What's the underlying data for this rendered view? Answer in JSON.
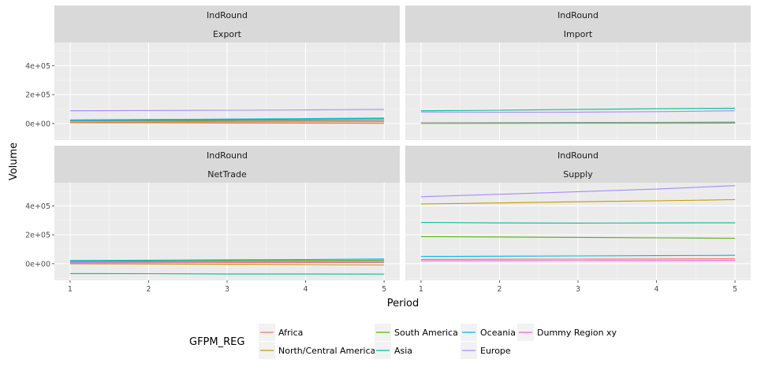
{
  "chart_data": {
    "type": "line",
    "xlabel": "Period",
    "ylabel": "Volume",
    "x": [
      1,
      2,
      3,
      4,
      5
    ],
    "xlim": [
      0.8,
      5.2
    ],
    "ylim": [
      -115000,
      560000
    ],
    "y_ticks": [
      0,
      200000,
      400000
    ],
    "y_tick_labels": [
      "0e+00",
      "2e+05",
      "4e+05"
    ],
    "grid": true,
    "legend": {
      "title": "GFPM_REG",
      "placement": "bottom",
      "entries": [
        "Africa",
        "North/Central America",
        "South America",
        "Asia",
        "Oceania",
        "Europe",
        "Dummy Region xy"
      ]
    },
    "colors": {
      "Africa": "#F8766D",
      "North/Central America": "#C49A00",
      "South America": "#53B400",
      "Asia": "#00C094",
      "Oceania": "#00B6EB",
      "Europe": "#A58AFF",
      "Dummy Region xy": "#FB61D7"
    },
    "panels": [
      {
        "strip1": "IndRound",
        "strip2": "Export",
        "series": [
          {
            "name": "Africa",
            "values": [
              8000,
              9000,
              10000,
              11000,
              12000
            ]
          },
          {
            "name": "North/Central America",
            "values": [
              5000,
              4000,
              3000,
              2000,
              1000
            ]
          },
          {
            "name": "South America",
            "values": [
              18000,
              20000,
              22000,
              24000,
              26000
            ]
          },
          {
            "name": "Asia",
            "values": [
              20000,
              23000,
              27000,
              31000,
              35000
            ]
          },
          {
            "name": "Oceania",
            "values": [
              25000,
              28000,
              31000,
              34000,
              38000
            ]
          },
          {
            "name": "Europe",
            "values": [
              88000,
              90000,
              92000,
              94000,
              98000
            ]
          },
          {
            "name": "Dummy Region xy",
            "values": [
              15000,
              15500,
              16000,
              16500,
              17000
            ]
          }
        ]
      },
      {
        "strip1": "IndRound",
        "strip2": "Import",
        "series": [
          {
            "name": "Africa",
            "values": [
              2000,
              2500,
              3000,
              3500,
              4000
            ]
          },
          {
            "name": "North/Central America",
            "values": [
              5000,
              6000,
              7000,
              8000,
              10000
            ]
          },
          {
            "name": "South America",
            "values": [
              1000,
              1200,
              1400,
              1600,
              1800
            ]
          },
          {
            "name": "Asia",
            "values": [
              88000,
              92000,
              98000,
              102000,
              106000
            ]
          },
          {
            "name": "Oceania",
            "values": [
              3000,
              3500,
              4000,
              4500,
              5000
            ]
          },
          {
            "name": "Europe",
            "values": [
              80000,
              78000,
              79000,
              82000,
              88000
            ]
          },
          {
            "name": "Dummy Region xy",
            "values": [
              2000,
              2000,
              2000,
              2000,
              2000
            ]
          }
        ]
      },
      {
        "strip1": "IndRound",
        "strip2": "NetTrade",
        "series": [
          {
            "name": "Africa",
            "values": [
              6000,
              6500,
              7000,
              7500,
              8000
            ]
          },
          {
            "name": "North/Central America",
            "values": [
              0,
              -2000,
              -4000,
              -6000,
              -9000
            ]
          },
          {
            "name": "South America",
            "values": [
              17000,
              18800,
              20600,
              22400,
              24200
            ]
          },
          {
            "name": "Asia",
            "values": [
              -68000,
              -69000,
              -71000,
              -71000,
              -72000
            ]
          },
          {
            "name": "Oceania",
            "values": [
              22000,
              24500,
              27000,
              29500,
              33000
            ]
          },
          {
            "name": "Europe",
            "values": [
              8000,
              12000,
              13000,
              12000,
              10000
            ]
          },
          {
            "name": "Dummy Region xy",
            "values": [
              13000,
              13500,
              14000,
              14500,
              15000
            ]
          }
        ]
      },
      {
        "strip1": "IndRound",
        "strip2": "Supply",
        "series": [
          {
            "name": "Africa",
            "values": [
              30000,
              31000,
              32000,
              33000,
              34000
            ]
          },
          {
            "name": "North/Central America",
            "values": [
              413000,
              420000,
              428000,
              435000,
              443000
            ]
          },
          {
            "name": "South America",
            "values": [
              187000,
              185000,
              182000,
              179000,
              176000
            ]
          },
          {
            "name": "Asia",
            "values": [
              285000,
              282000,
              281000,
              282000,
              283000
            ]
          },
          {
            "name": "Oceania",
            "values": [
              50000,
              52000,
              54000,
              56000,
              58000
            ]
          },
          {
            "name": "Europe",
            "values": [
              463000,
              480000,
              498000,
              516000,
              540000
            ]
          },
          {
            "name": "Dummy Region xy",
            "values": [
              20000,
              20500,
              21000,
              21500,
              22000
            ]
          }
        ]
      }
    ]
  }
}
